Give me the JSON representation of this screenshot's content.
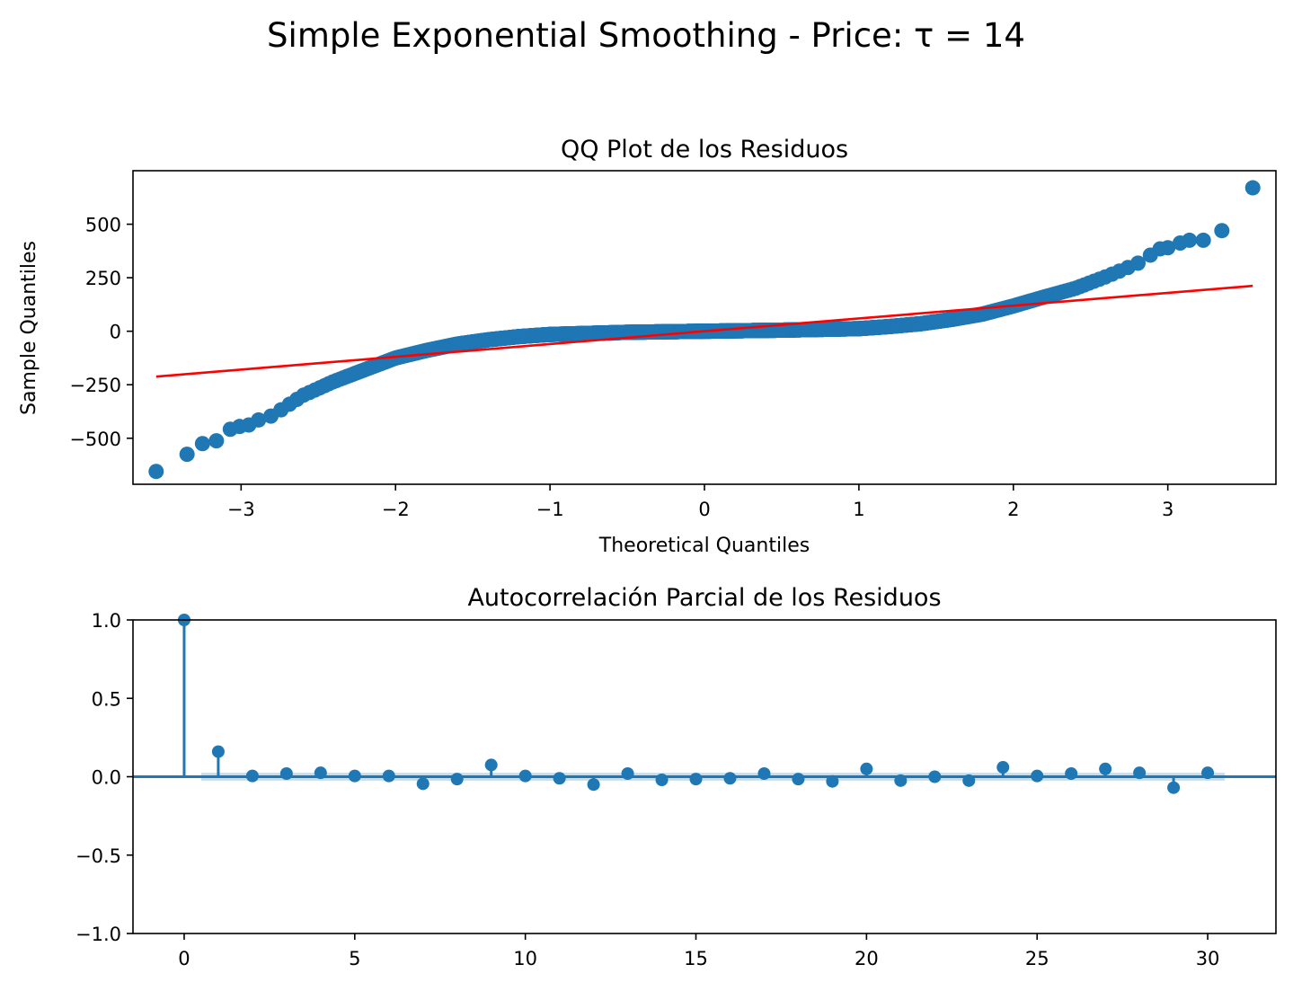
{
  "figure": {
    "suptitle": "Simple Exponential Smoothing - Price: τ = 14"
  },
  "colors": {
    "points": "#1f77b4",
    "reference_line": "#ff0000",
    "confidence_band": "#1f77b4"
  },
  "chart_data": [
    {
      "type": "scatter",
      "title": "QQ Plot de los Residuos",
      "xlabel": "Theoretical Quantiles",
      "ylabel": "Sample Quantiles",
      "xlim": [
        -3.7,
        3.7
      ],
      "ylim": [
        -715,
        750
      ],
      "xticks": [
        -3,
        -2,
        -1,
        0,
        1,
        2,
        3
      ],
      "xtick_labels": [
        "−3",
        "−2",
        "−1",
        "0",
        "1",
        "2",
        "3"
      ],
      "yticks": [
        -500,
        -250,
        0,
        250,
        500
      ],
      "ytick_labels": [
        "−500",
        "−250",
        "0",
        "250",
        "500"
      ],
      "grid": false,
      "outliers": [
        {
          "x": -3.55,
          "y": -655
        },
        {
          "x": -3.35,
          "y": -575
        },
        {
          "x": -3.25,
          "y": -525
        },
        {
          "x": -3.16,
          "y": -512
        },
        {
          "x": -3.07,
          "y": -458
        },
        {
          "x": -3.01,
          "y": -445
        },
        {
          "x": -2.95,
          "y": -438
        },
        {
          "x": 2.95,
          "y": 385
        },
        {
          "x": 3.0,
          "y": 390
        },
        {
          "x": 3.08,
          "y": 412
        },
        {
          "x": 3.14,
          "y": 425
        },
        {
          "x": 3.23,
          "y": 425
        },
        {
          "x": 3.35,
          "y": 470
        },
        {
          "x": 3.55,
          "y": 670
        }
      ],
      "reference_line": {
        "x": [
          -3.55,
          3.55
        ],
        "y": [
          -212,
          212
        ]
      }
    },
    {
      "type": "stem",
      "title": "Autocorrelación Parcial de los Residuos",
      "xlabel": "",
      "ylabel": "",
      "xlim": [
        -1.5,
        32
      ],
      "ylim": [
        -1.0,
        1.0
      ],
      "xticks": [
        0,
        5,
        10,
        15,
        20,
        25,
        30
      ],
      "xtick_labels": [
        "0",
        "5",
        "10",
        "15",
        "20",
        "25",
        "30"
      ],
      "yticks": [
        -1.0,
        -0.5,
        0.0,
        0.5,
        1.0
      ],
      "ytick_labels": [
        "−1.0",
        "−0.5",
        "0.0",
        "0.5",
        "1.0"
      ],
      "grid": false,
      "lags": [
        0,
        1,
        2,
        3,
        4,
        5,
        6,
        7,
        8,
        9,
        10,
        11,
        12,
        13,
        14,
        15,
        16,
        17,
        18,
        19,
        20,
        21,
        22,
        23,
        24,
        25,
        26,
        27,
        28,
        29,
        30
      ],
      "values": [
        1.0,
        0.16,
        0.005,
        0.02,
        0.025,
        0.005,
        0.005,
        -0.045,
        -0.015,
        0.075,
        0.005,
        -0.01,
        -0.05,
        0.02,
        -0.02,
        -0.015,
        -0.01,
        0.02,
        -0.015,
        -0.03,
        0.05,
        -0.025,
        0.0,
        -0.025,
        0.06,
        0.005,
        0.02,
        0.05,
        0.025,
        -0.07,
        0.025
      ],
      "confidence_interval": [
        -0.025,
        0.025
      ]
    }
  ]
}
